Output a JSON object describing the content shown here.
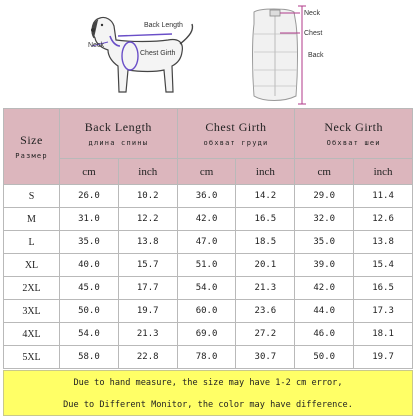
{
  "diagram": {
    "dog_labels": {
      "back": "Back Length",
      "neck": "Neck",
      "chest": "Chest Girth"
    },
    "vest_labels": {
      "neck": "Neck",
      "chest": "Chest",
      "back": "Back"
    },
    "colors": {
      "measure_line": "#6a4fc8",
      "header_bg": "#dcb6bd",
      "notice_bg": "#ffff66"
    }
  },
  "table": {
    "corner": {
      "en": "Size",
      "ru": "Размер"
    },
    "groups": [
      {
        "en": "Back Length",
        "ru": "длина спины"
      },
      {
        "en": "Chest Girth",
        "ru": "обхват груди"
      },
      {
        "en": "Neck Girth",
        "ru": "Обхват шеи"
      }
    ],
    "units": [
      "cm",
      "inch",
      "cm",
      "inch",
      "cm",
      "inch"
    ],
    "rows": [
      {
        "size": "S",
        "values": [
          "26.0",
          "10.2",
          "36.0",
          "14.2",
          "29.0",
          "11.4"
        ]
      },
      {
        "size": "M",
        "values": [
          "31.0",
          "12.2",
          "42.0",
          "16.5",
          "32.0",
          "12.6"
        ]
      },
      {
        "size": "L",
        "values": [
          "35.0",
          "13.8",
          "47.0",
          "18.5",
          "35.0",
          "13.8"
        ]
      },
      {
        "size": "XL",
        "values": [
          "40.0",
          "15.7",
          "51.0",
          "20.1",
          "39.0",
          "15.4"
        ]
      },
      {
        "size": "2XL",
        "values": [
          "45.0",
          "17.7",
          "54.0",
          "21.3",
          "42.0",
          "16.5"
        ]
      },
      {
        "size": "3XL",
        "values": [
          "50.0",
          "19.7",
          "60.0",
          "23.6",
          "44.0",
          "17.3"
        ]
      },
      {
        "size": "4XL",
        "values": [
          "54.0",
          "21.3",
          "69.0",
          "27.2",
          "46.0",
          "18.1"
        ]
      },
      {
        "size": "5XL",
        "values": [
          "58.0",
          "22.8",
          "78.0",
          "30.7",
          "50.0",
          "19.7"
        ]
      }
    ]
  },
  "notice": {
    "line1": "Due to hand measure, the size may have 1-2 cm error,",
    "line2": "Due to Different Monitor, the color may have difference."
  }
}
